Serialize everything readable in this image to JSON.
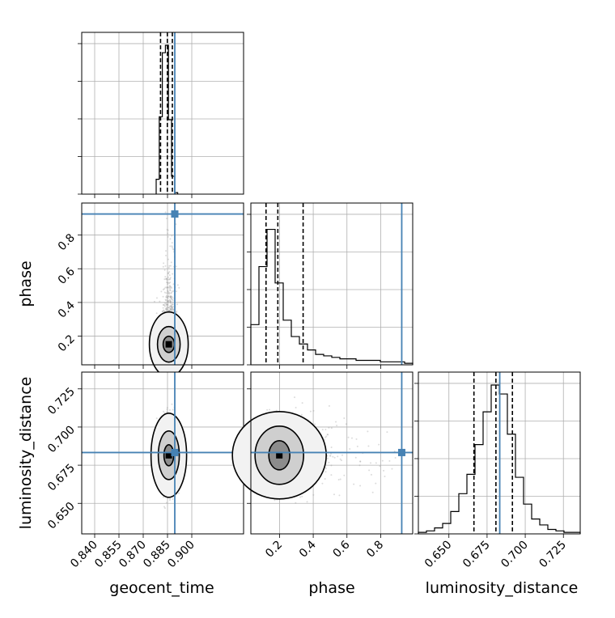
{
  "chart_data": {
    "type": "corner",
    "parameters": [
      "geocent_time",
      "phase",
      "luminosity_distance"
    ],
    "axis_labels": {
      "geocent_time": "geocent_time",
      "phase": "phase",
      "luminosity_distance": "luminosity_distance"
    },
    "ranges": {
      "geocent_time": [
        0.832,
        0.932
      ],
      "phase": [
        0.03,
        0.99
      ],
      "luminosity_distance": [
        0.63,
        0.736
      ]
    },
    "ticks": {
      "geocent_time": [
        "0.840",
        "0.855",
        "0.870",
        "0.885",
        "0.900"
      ],
      "phase": [
        "0.2",
        "0.4",
        "0.6",
        "0.8"
      ],
      "luminosity_distance": [
        "0.650",
        "0.675",
        "0.700",
        "0.725"
      ]
    },
    "truths": {
      "geocent_time": 0.8895,
      "phase": 0.925,
      "luminosity_distance": 0.6833
    },
    "truth_color": "#4682b4",
    "quantiles": {
      "geocent_time": [
        0.8807,
        0.8849,
        0.888
      ],
      "phase": [
        0.12,
        0.19,
        0.34
      ],
      "luminosity_distance": [
        0.6664,
        0.6808,
        0.6916
      ]
    },
    "histograms": {
      "geocent_time": {
        "edges": [
          0.878,
          0.8799,
          0.8818,
          0.8837,
          0.8856,
          0.8875,
          0.8894,
          0.8913
        ],
        "counts": [
          0.1,
          0.52,
          0.95,
          1.0,
          0.5,
          0.12,
          0.01
        ]
      },
      "phase": {
        "edges": [
          0.03,
          0.078,
          0.126,
          0.174,
          0.222,
          0.27,
          0.318,
          0.366,
          0.414,
          0.462,
          0.51,
          0.558,
          0.606,
          0.654,
          0.702,
          0.75,
          0.798,
          0.846,
          0.894,
          0.942,
          0.99
        ],
        "counts": [
          0.27,
          0.66,
          0.91,
          0.55,
          0.3,
          0.19,
          0.14,
          0.1,
          0.07,
          0.06,
          0.05,
          0.04,
          0.04,
          0.03,
          0.03,
          0.03,
          0.02,
          0.02,
          0.02,
          0.01
        ]
      },
      "luminosity_distance": {
        "edges": [
          0.63,
          0.6353,
          0.6406,
          0.6459,
          0.6512,
          0.6565,
          0.6618,
          0.6671,
          0.6724,
          0.6777,
          0.683,
          0.6883,
          0.6936,
          0.6989,
          0.7042,
          0.7095,
          0.7148,
          0.7201,
          0.7254,
          0.7307,
          0.736
        ],
        "counts": [
          0.01,
          0.02,
          0.04,
          0.07,
          0.15,
          0.27,
          0.4,
          0.6,
          0.82,
          1.0,
          0.94,
          0.67,
          0.38,
          0.2,
          0.1,
          0.06,
          0.03,
          0.02,
          0.01,
          0.01
        ]
      }
    },
    "grid": true,
    "samples_color": "#9a9a9a",
    "contour_color": "#000000"
  }
}
